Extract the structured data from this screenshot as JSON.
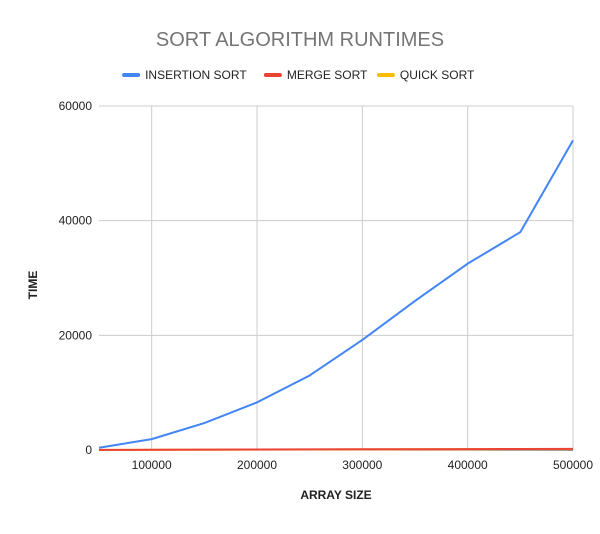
{
  "chart_data": {
    "type": "line",
    "title": "SORT ALGORITHM RUNTIMES",
    "xlabel": "ARRAY SIZE",
    "ylabel": "TIME",
    "xlim": [
      50000,
      500000
    ],
    "ylim": [
      0,
      60000
    ],
    "x_ticks": [
      100000,
      200000,
      300000,
      400000,
      500000
    ],
    "y_ticks": [
      0,
      20000,
      40000,
      60000
    ],
    "grid": true,
    "legend_position": "top",
    "x": [
      50000,
      100000,
      150000,
      200000,
      250000,
      300000,
      350000,
      400000,
      450000,
      500000
    ],
    "series": [
      {
        "name": "INSERTION SORT",
        "color": "#4285f4",
        "values": [
          400,
          1900,
          4700,
          8300,
          13000,
          19200,
          26000,
          32500,
          38000,
          54000
        ]
      },
      {
        "name": "MERGE SORT",
        "color": "#ea4335",
        "values": [
          20,
          40,
          60,
          80,
          100,
          120,
          140,
          160,
          180,
          200
        ]
      },
      {
        "name": "QUICK SORT",
        "color": "#fbbc04",
        "values": [
          10,
          25,
          40,
          60,
          80,
          100,
          120,
          140,
          160,
          180
        ]
      }
    ]
  }
}
